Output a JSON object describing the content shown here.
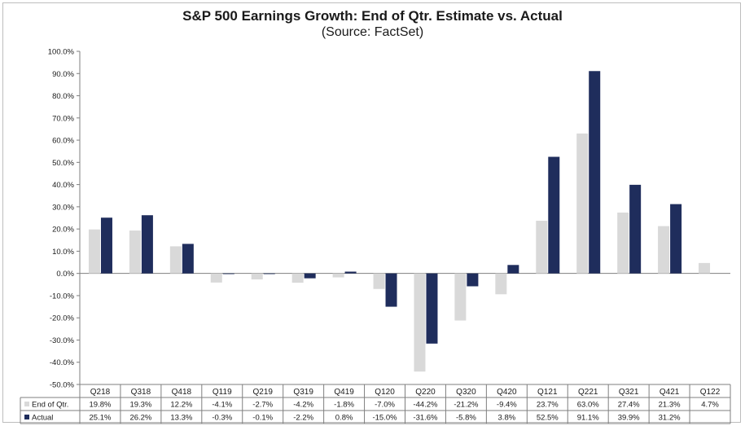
{
  "colors": {
    "estimate": "#d9d9d9",
    "actual": "#1f2d5c",
    "axis": "#7f7f7f",
    "text": "#1a1a1a"
  },
  "chart_data": {
    "type": "bar",
    "title": "S&P 500 Earnings Growth: End of Qtr. Estimate vs. Actual",
    "subtitle": "(Source: FactSet)",
    "categories": [
      "Q218",
      "Q318",
      "Q418",
      "Q119",
      "Q219",
      "Q319",
      "Q419",
      "Q120",
      "Q220",
      "Q320",
      "Q420",
      "Q121",
      "Q221",
      "Q321",
      "Q421",
      "Q122"
    ],
    "y_ticks": [
      "100.0%",
      "90.0%",
      "80.0%",
      "70.0%",
      "60.0%",
      "50.0%",
      "40.0%",
      "30.0%",
      "20.0%",
      "10.0%",
      "0.0%",
      "-10.0%",
      "-20.0%",
      "-30.0%",
      "-40.0%",
      "-50.0%"
    ],
    "ylim": [
      -50,
      100
    ],
    "legend_position": "table-bottom",
    "series": [
      {
        "name": "End of Qtr.",
        "values": [
          19.8,
          19.3,
          12.2,
          -4.1,
          -2.7,
          -4.2,
          -1.8,
          -7.0,
          -44.2,
          -21.2,
          -9.4,
          23.7,
          63.0,
          27.4,
          21.3,
          4.7
        ],
        "labels": [
          "19.8%",
          "19.3%",
          "12.2%",
          "-4.1%",
          "-2.7%",
          "-4.2%",
          "-1.8%",
          "-7.0%",
          "-44.2%",
          "-21.2%",
          "-9.4%",
          "23.7%",
          "63.0%",
          "27.4%",
          "21.3%",
          "4.7%"
        ]
      },
      {
        "name": "Actual",
        "values": [
          25.1,
          26.2,
          13.3,
          -0.3,
          -0.1,
          -2.2,
          0.8,
          -15.0,
          -31.6,
          -5.8,
          3.8,
          52.5,
          91.1,
          39.9,
          31.2,
          null
        ],
        "labels": [
          "25.1%",
          "26.2%",
          "13.3%",
          "-0.3%",
          "-0.1%",
          "-2.2%",
          "0.8%",
          "-15.0%",
          "-31.6%",
          "-5.8%",
          "3.8%",
          "52.5%",
          "91.1%",
          "39.9%",
          "31.2%",
          ""
        ]
      }
    ]
  }
}
